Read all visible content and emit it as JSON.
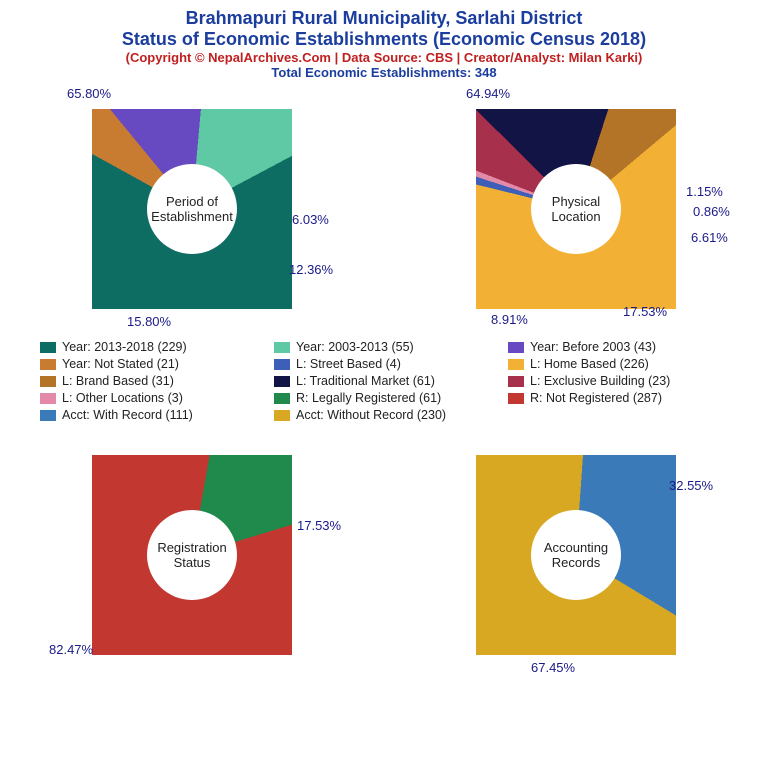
{
  "header": {
    "title1": "Brahmapuri Rural Municipality, Sarlahi District",
    "title2": "Status of Economic Establishments (Economic Census 2018)",
    "title_color": "#1a3d9e",
    "title_fontsize": 18,
    "copyright": "(Copyright © NepalArchives.Com | Data Source: CBS | Creator/Analyst: Milan Karki)",
    "copyright_color": "#c02020",
    "copyright_fontsize": 13,
    "total": "Total Economic Establishments: 348",
    "total_color": "#1a3d9e",
    "total_fontsize": 13
  },
  "label_color": "#1a1a8a",
  "charts": {
    "period": {
      "center_label": "Period of\nEstablishment",
      "slices": [
        {
          "pct": 65.8,
          "color": "#0e6d63",
          "label": "65.80%"
        },
        {
          "pct": 6.03,
          "color": "#c87c32",
          "label": "6.03%"
        },
        {
          "pct": 12.36,
          "color": "#6749c1",
          "label": "12.36%"
        },
        {
          "pct": 15.8,
          "color": "#5fc8a4",
          "label": "15.80%"
        }
      ]
    },
    "location": {
      "center_label": "Physical\nLocation",
      "slices": [
        {
          "pct": 64.94,
          "color": "#f2b134",
          "label": "64.94%"
        },
        {
          "pct": 1.15,
          "color": "#3e5fb8",
          "label": "1.15%"
        },
        {
          "pct": 0.86,
          "color": "#e28aa8",
          "label": "0.86%"
        },
        {
          "pct": 6.61,
          "color": "#a7304d",
          "label": "6.61%"
        },
        {
          "pct": 17.53,
          "color": "#121445",
          "label": "17.53%"
        },
        {
          "pct": 8.91,
          "color": "#b37428",
          "label": "8.91%"
        }
      ]
    },
    "registration": {
      "center_label": "Registration\nStatus",
      "slices": [
        {
          "pct": 17.53,
          "color": "#1f8a4c",
          "label": "17.53%"
        },
        {
          "pct": 82.47,
          "color": "#c2372f",
          "label": "82.47%"
        }
      ]
    },
    "accounting": {
      "center_label": "Accounting\nRecords",
      "slices": [
        {
          "pct": 32.55,
          "color": "#3a7ab8",
          "label": "32.55%"
        },
        {
          "pct": 67.45,
          "color": "#d9a822",
          "label": "67.45%"
        }
      ]
    }
  },
  "legend": [
    {
      "color": "#0e6d63",
      "text": "Year: 2013-2018 (229)"
    },
    {
      "color": "#5fc8a4",
      "text": "Year: 2003-2013 (55)"
    },
    {
      "color": "#6749c1",
      "text": "Year: Before 2003 (43)"
    },
    {
      "color": "#c87c32",
      "text": "Year: Not Stated (21)"
    },
    {
      "color": "#3e5fb8",
      "text": "L: Street Based (4)"
    },
    {
      "color": "#f2b134",
      "text": "L: Home Based (226)"
    },
    {
      "color": "#b37428",
      "text": "L: Brand Based (31)"
    },
    {
      "color": "#121445",
      "text": "L: Traditional Market (61)"
    },
    {
      "color": "#a7304d",
      "text": "L: Exclusive Building (23)"
    },
    {
      "color": "#e28aa8",
      "text": "L: Other Locations (3)"
    },
    {
      "color": "#1f8a4c",
      "text": "R: Legally Registered (61)"
    },
    {
      "color": "#c2372f",
      "text": "R: Not Registered (287)"
    },
    {
      "color": "#3a7ab8",
      "text": "Acct: With Record (111)"
    },
    {
      "color": "#d9a822",
      "text": "Acct: Without Record (230)"
    }
  ]
}
